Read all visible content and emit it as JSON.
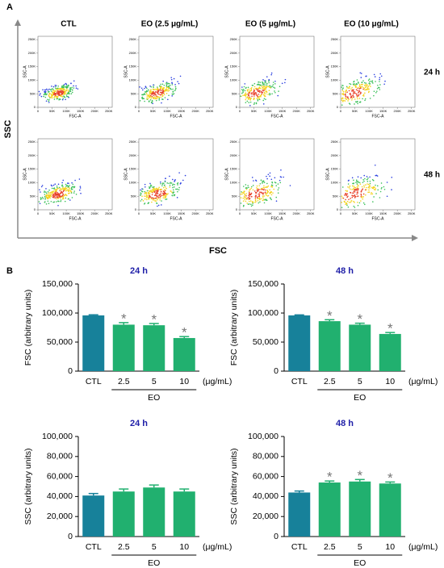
{
  "panel_labels": [
    "A",
    "B"
  ],
  "panel_a": {
    "columns": [
      "CTL",
      "EO (2.5 μg/mL)",
      "EO (5 μg/mL)",
      "EO (10 μg/mL)"
    ],
    "rows": [
      "24 h",
      "48 h"
    ],
    "x_axis_label": "FSC",
    "y_axis_label": "SSC",
    "plot_x_label": "FSC-A",
    "plot_y_label": "SSC-A",
    "plot_lim": [
      0,
      262144
    ],
    "plot_ticks": [
      0,
      {
        "value": 50000,
        "label": "50K"
      },
      {
        "value": 100000,
        "label": "100K"
      },
      {
        "value": 150000,
        "label": "150K"
      },
      {
        "value": 200000,
        "label": "200K"
      },
      {
        "value": 250000,
        "label": "250K"
      }
    ]
  },
  "chart_data": [
    {
      "type": "bar",
      "title": "24 h",
      "y_label": "FSC (arbitrary units)",
      "x_group_label": "EO",
      "x_unit": "(μg/mL)",
      "categories": [
        "CTL",
        "2.5",
        "5",
        "10"
      ],
      "values": [
        96000,
        80000,
        79000,
        57000
      ],
      "errors": [
        1000,
        3500,
        3000,
        2500
      ],
      "significance": [
        null,
        "*",
        "*",
        "*"
      ],
      "colors": [
        "#17819a",
        "#21b06f",
        "#21b06f",
        "#21b06f"
      ],
      "ylim": [
        0,
        150000
      ],
      "yticks": [
        0,
        {
          "value": 50000,
          "label": "50,000"
        },
        {
          "value": 100000,
          "label": "100,000"
        },
        {
          "value": 150000,
          "label": "150,000"
        }
      ]
    },
    {
      "type": "bar",
      "title": "48 h",
      "y_label": "FSC (arbitrary units)",
      "x_group_label": "EO",
      "x_unit": "(μg/mL)",
      "categories": [
        "CTL",
        "2.5",
        "5",
        "10"
      ],
      "values": [
        96000,
        86000,
        80000,
        64000
      ],
      "errors": [
        800,
        2500,
        2500,
        2500
      ],
      "significance": [
        null,
        "*",
        "*",
        "*"
      ],
      "colors": [
        "#17819a",
        "#21b06f",
        "#21b06f",
        "#21b06f"
      ],
      "ylim": [
        0,
        150000
      ],
      "yticks": [
        0,
        {
          "value": 50000,
          "label": "50,000"
        },
        {
          "value": 100000,
          "label": "100,000"
        },
        {
          "value": 150000,
          "label": "150,000"
        }
      ]
    },
    {
      "type": "bar",
      "title": "24 h",
      "y_label": "SSC (arbitrary units)",
      "x_group_label": "EO",
      "x_unit": "(μg/mL)",
      "categories": [
        "CTL",
        "2.5",
        "5",
        "10"
      ],
      "values": [
        41000,
        45000,
        49000,
        45000
      ],
      "errors": [
        2000,
        2500,
        2500,
        2500
      ],
      "colors": [
        "#17819a",
        "#21b06f",
        "#21b06f",
        "#21b06f"
      ],
      "ylim": [
        0,
        100000
      ],
      "yticks": [
        0,
        {
          "value": 20000,
          "label": "20,000"
        },
        {
          "value": 40000,
          "label": "40,000"
        },
        {
          "value": 60000,
          "label": "60,000"
        },
        {
          "value": 80000,
          "label": "80,000"
        },
        {
          "value": 100000,
          "label": "100,000"
        }
      ]
    },
    {
      "type": "bar",
      "title": "48 h",
      "y_label": "SSC (arbitrary units)",
      "x_group_label": "EO",
      "x_unit": "(μg/mL)",
      "categories": [
        "CTL",
        "2.5",
        "5",
        "10"
      ],
      "values": [
        44000,
        54000,
        55000,
        53000
      ],
      "errors": [
        1500,
        1500,
        2000,
        1500
      ],
      "significance": [
        null,
        "*",
        "*",
        "*"
      ],
      "colors": [
        "#17819a",
        "#21b06f",
        "#21b06f",
        "#21b06f"
      ],
      "ylim": [
        0,
        100000
      ],
      "yticks": [
        0,
        {
          "value": 20000,
          "label": "20,000"
        },
        {
          "value": 40000,
          "label": "40,000"
        },
        {
          "value": 60000,
          "label": "60,000"
        },
        {
          "value": 80000,
          "label": "80,000"
        },
        {
          "value": 100000,
          "label": "100,000"
        }
      ]
    }
  ]
}
